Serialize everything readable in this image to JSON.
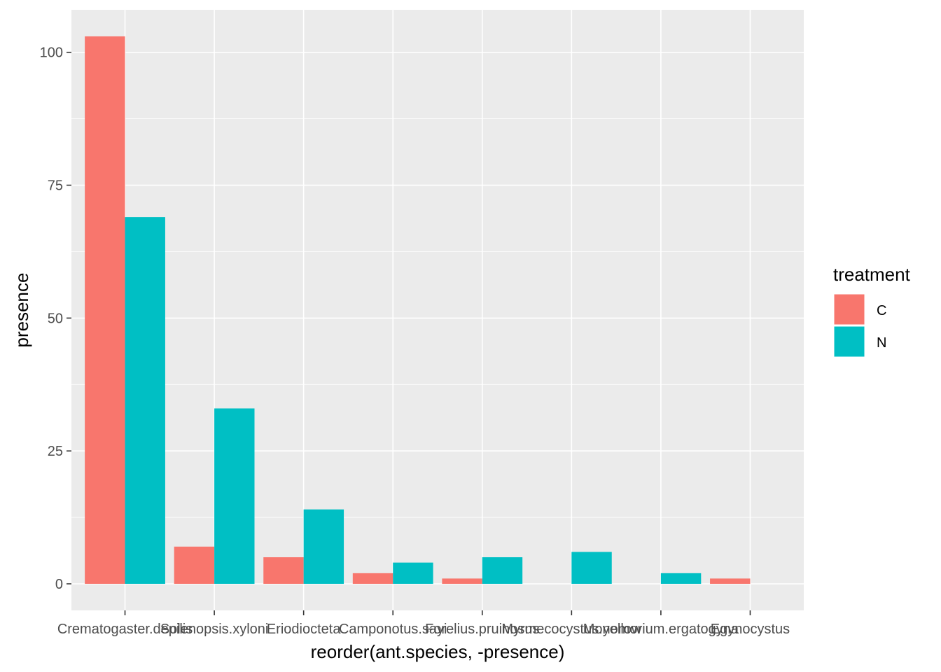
{
  "chart_data": {
    "type": "bar",
    "title": "",
    "xlabel": "reorder(ant.species, -presence)",
    "ylabel": "presence",
    "categories": [
      "Crematogaster.depilis",
      "Solenopsis.xyloni",
      "Eriodiocteta",
      "Camponotus.sayi",
      "Forelius.pruinosus",
      "Myrmecocystus.yellow",
      "Monomorium.ergatogyna",
      "Egynocystus"
    ],
    "series": [
      {
        "name": "C",
        "color": "#F8766D",
        "values": [
          103,
          7,
          5,
          2,
          1,
          0,
          0,
          1
        ]
      },
      {
        "name": "N",
        "color": "#00BFC4",
        "values": [
          69,
          33,
          14,
          4,
          5,
          6,
          2,
          0
        ]
      }
    ],
    "yticks": [
      0,
      25,
      50,
      75,
      100
    ],
    "ylim": [
      -5,
      108
    ],
    "grid": true,
    "legend": {
      "title": "treatment",
      "position": "right",
      "entries": [
        "C",
        "N"
      ]
    }
  }
}
